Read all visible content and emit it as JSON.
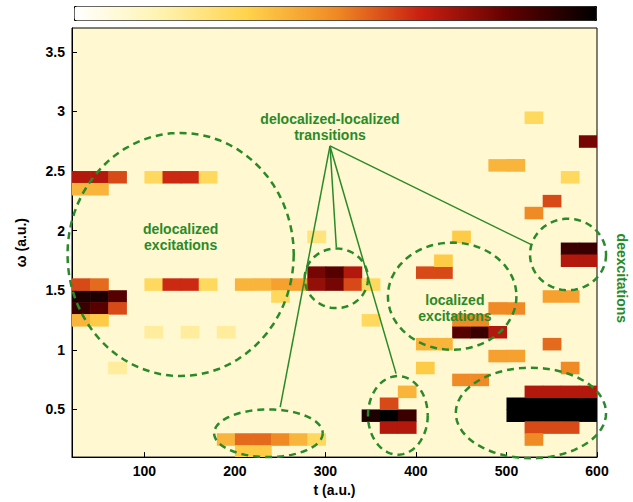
{
  "chart_data": {
    "type": "heatmap",
    "x_label": "t (a.u.)",
    "y_label": "ω (a.u.)",
    "xlim": [
      20,
      600
    ],
    "xticks": [
      100,
      200,
      300,
      400,
      500,
      600
    ],
    "ylim": [
      0.1,
      3.7
    ],
    "yticks": [
      0.5,
      1,
      1.5,
      2,
      2.5,
      3,
      3.5
    ],
    "grid": false,
    "color": "#2a8a2a",
    "cell_dt": 20,
    "cell_domega": 0.1,
    "background_value": 0.1,
    "colorbar_range": [
      0,
      1
    ],
    "cells": [
      [
        30,
        1.45,
        0.95
      ],
      [
        50,
        1.45,
        0.95
      ],
      [
        70,
        1.45,
        0.85
      ],
      [
        30,
        1.35,
        0.9
      ],
      [
        50,
        1.35,
        0.85
      ],
      [
        70,
        1.35,
        0.6
      ],
      [
        30,
        1.55,
        0.6
      ],
      [
        50,
        1.55,
        0.55
      ],
      [
        30,
        1.25,
        0.4
      ],
      [
        50,
        1.25,
        0.35
      ],
      [
        30,
        2.45,
        0.7
      ],
      [
        50,
        2.45,
        0.7
      ],
      [
        70,
        2.45,
        0.6
      ],
      [
        30,
        2.35,
        0.4
      ],
      [
        50,
        2.35,
        0.4
      ],
      [
        110,
        2.45,
        0.3
      ],
      [
        130,
        2.45,
        0.65
      ],
      [
        150,
        2.45,
        0.65
      ],
      [
        170,
        2.45,
        0.3
      ],
      [
        110,
        1.55,
        0.3
      ],
      [
        130,
        1.55,
        0.65
      ],
      [
        150,
        1.55,
        0.65
      ],
      [
        170,
        1.55,
        0.3
      ],
      [
        110,
        1.15,
        0.2
      ],
      [
        150,
        1.15,
        0.2
      ],
      [
        190,
        1.15,
        0.2
      ],
      [
        210,
        1.55,
        0.4
      ],
      [
        230,
        1.55,
        0.4
      ],
      [
        250,
        1.55,
        0.45
      ],
      [
        270,
        1.55,
        0.45
      ],
      [
        250,
        1.45,
        0.3
      ],
      [
        290,
        1.65,
        0.8
      ],
      [
        310,
        1.65,
        0.85
      ],
      [
        330,
        1.65,
        0.7
      ],
      [
        290,
        1.55,
        0.75
      ],
      [
        310,
        1.55,
        0.8
      ],
      [
        330,
        1.55,
        0.6
      ],
      [
        190,
        0.25,
        0.4
      ],
      [
        210,
        0.25,
        0.55
      ],
      [
        230,
        0.25,
        0.55
      ],
      [
        250,
        0.25,
        0.5
      ],
      [
        270,
        0.25,
        0.4
      ],
      [
        290,
        0.25,
        0.3
      ],
      [
        210,
        0.15,
        0.35
      ],
      [
        230,
        0.15,
        0.35
      ],
      [
        350,
        0.45,
        0.95
      ],
      [
        370,
        0.45,
        1
      ],
      [
        390,
        0.45,
        0.9
      ],
      [
        370,
        0.35,
        0.7
      ],
      [
        390,
        0.35,
        0.7
      ],
      [
        370,
        0.55,
        0.6
      ],
      [
        390,
        0.65,
        0.4
      ],
      [
        410,
        1.65,
        0.6
      ],
      [
        430,
        1.65,
        0.6
      ],
      [
        430,
        1.75,
        0.35
      ],
      [
        450,
        1.15,
        0.85
      ],
      [
        470,
        1.15,
        0.9
      ],
      [
        490,
        1.15,
        0.7
      ],
      [
        450,
        1.25,
        0.5
      ],
      [
        470,
        1.25,
        0.5
      ],
      [
        490,
        1.35,
        0.5
      ],
      [
        510,
        1.35,
        0.5
      ],
      [
        410,
        1.05,
        0.4
      ],
      [
        430,
        1.05,
        0.4
      ],
      [
        410,
        0.85,
        0.35
      ],
      [
        510,
        0.45,
        1
      ],
      [
        530,
        0.45,
        1
      ],
      [
        550,
        0.45,
        1
      ],
      [
        570,
        0.45,
        1
      ],
      [
        590,
        0.45,
        1
      ],
      [
        510,
        0.55,
        1
      ],
      [
        530,
        0.55,
        1
      ],
      [
        550,
        0.55,
        1
      ],
      [
        570,
        0.55,
        1
      ],
      [
        590,
        0.55,
        1
      ],
      [
        530,
        0.35,
        0.6
      ],
      [
        550,
        0.35,
        0.6
      ],
      [
        570,
        0.35,
        0.6
      ],
      [
        530,
        0.65,
        0.7
      ],
      [
        550,
        0.65,
        0.7
      ],
      [
        570,
        0.65,
        0.7
      ],
      [
        590,
        0.65,
        0.7
      ],
      [
        530,
        0.25,
        0.5
      ],
      [
        570,
        1.85,
        0.9
      ],
      [
        590,
        1.85,
        0.9
      ],
      [
        570,
        1.75,
        0.7
      ],
      [
        590,
        1.75,
        0.7
      ],
      [
        550,
        2.25,
        0.6
      ],
      [
        530,
        2.15,
        0.5
      ],
      [
        590,
        2.75,
        0.8
      ],
      [
        490,
        2.55,
        0.4
      ],
      [
        510,
        2.55,
        0.4
      ],
      [
        570,
        2.45,
        0.3
      ],
      [
        450,
        1.95,
        0.35
      ],
      [
        450,
        0.75,
        0.5
      ],
      [
        470,
        0.75,
        0.5
      ],
      [
        490,
        0.95,
        0.45
      ],
      [
        510,
        0.95,
        0.45
      ],
      [
        550,
        1.45,
        0.45
      ],
      [
        570,
        1.45,
        0.45
      ],
      [
        550,
        1.05,
        0.55
      ],
      [
        570,
        0.85,
        0.5
      ],
      [
        350,
        1.25,
        0.3
      ],
      [
        530,
        2.95,
        0.3
      ],
      [
        350,
        1.55,
        0.3
      ],
      [
        70,
        0.85,
        0.2
      ],
      [
        290,
        1.95,
        0.25
      ]
    ],
    "regions": [
      {
        "t": 140,
        "omega": 1.8,
        "t_radius": 125,
        "omega_radius": 1.02
      },
      {
        "t": 237,
        "omega": 0.3,
        "t_radius": 60,
        "omega_radius": 0.2
      },
      {
        "t": 312,
        "omega": 1.6,
        "t_radius": 35,
        "omega_radius": 0.25
      },
      {
        "t": 380,
        "omega": 0.45,
        "t_radius": 33,
        "omega_radius": 0.33
      },
      {
        "t": 440,
        "omega": 1.45,
        "t_radius": 71,
        "omega_radius": 0.45
      },
      {
        "t": 527,
        "omega": 0.47,
        "t_radius": 83,
        "omega_radius": 0.38
      },
      {
        "t": 568,
        "omega": 1.8,
        "t_radius": 42,
        "omega_radius": 0.3
      }
    ],
    "annotations": [
      {
        "text": "delocalized excitations",
        "t": 140,
        "omega": 1.95
      },
      {
        "text": "delocalized-localized transitions",
        "t": 305,
        "omega": 2.87,
        "pointers": [
          [
            250,
            0.52
          ],
          [
            312,
            1.86
          ],
          [
            378,
            0.8
          ],
          [
            528,
            1.88
          ]
        ]
      },
      {
        "text": "localized excitations",
        "t": 443,
        "omega": 1.35
      },
      {
        "text": "deexcitations",
        "t": 628,
        "omega": 1.6
      }
    ]
  }
}
